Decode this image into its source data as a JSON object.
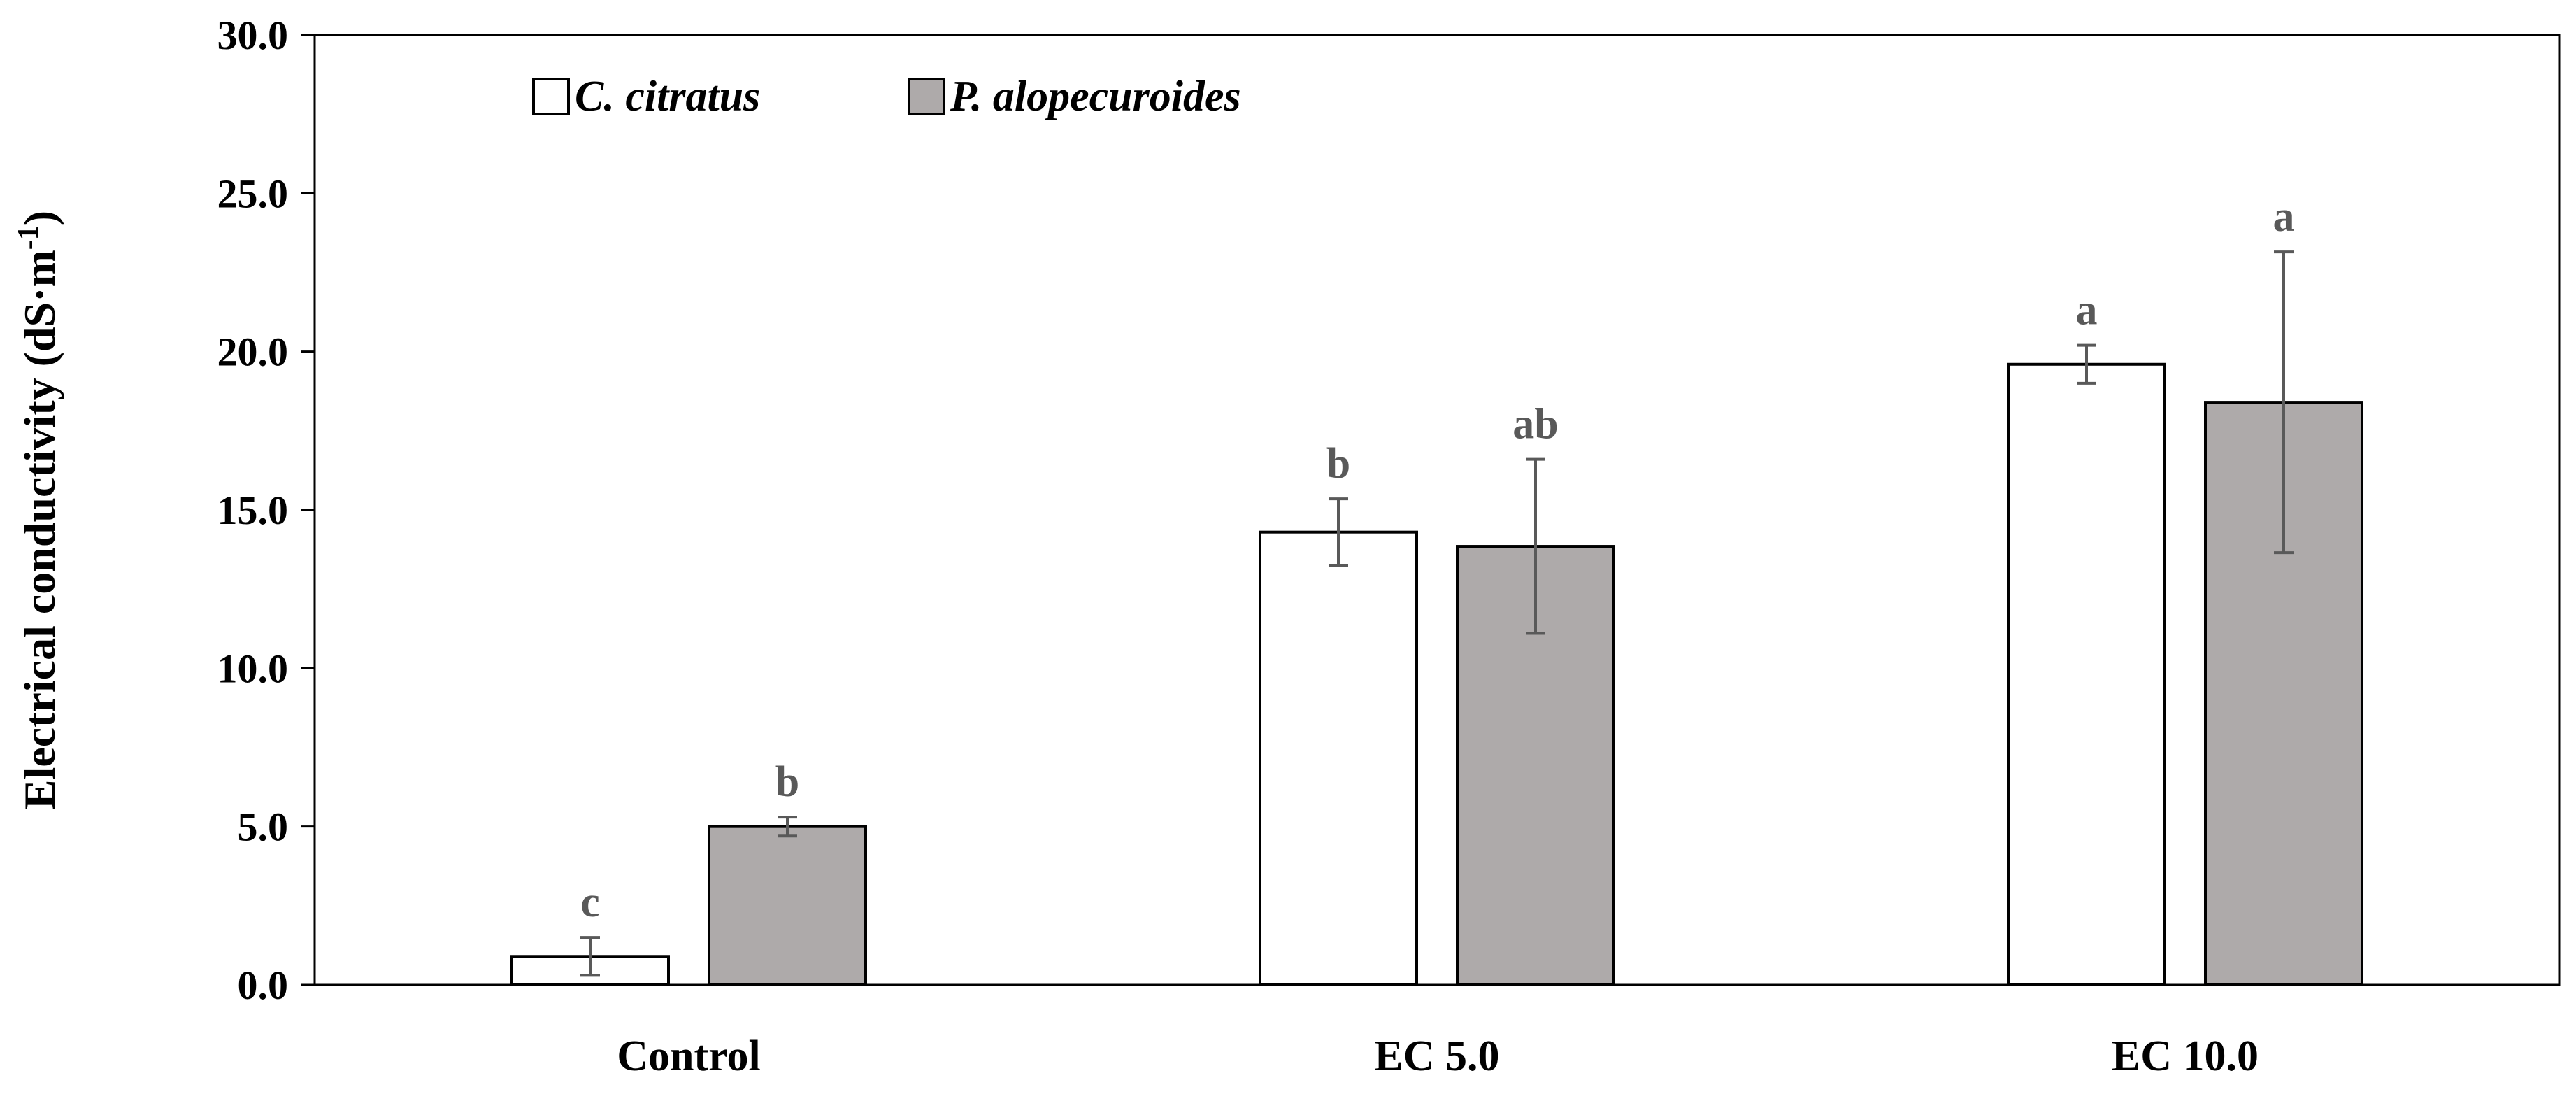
{
  "chart_data": {
    "type": "bar",
    "categories": [
      "Control",
      "EC 5.0",
      "EC 10.0"
    ],
    "series": [
      {
        "name": "C. citratus",
        "color": "#ffffff",
        "values": [
          0.9,
          14.3,
          19.6
        ],
        "errors": [
          0.6,
          1.05,
          0.6
        ],
        "letters": [
          "c",
          "b",
          "a"
        ]
      },
      {
        "name": "P. alopecuroides",
        "color": "#aeaaaa",
        "values": [
          5.0,
          13.85,
          18.4
        ],
        "errors": [
          0.3,
          2.75,
          4.75
        ],
        "letters": [
          "b",
          "ab",
          "a"
        ]
      }
    ],
    "ylabel_main": "Electrical conductivity (dS·m",
    "ylabel_sup": "-1",
    "ylabel_close": ")",
    "ylim": [
      0,
      30
    ],
    "yticks": [
      "0.0",
      "5.0",
      "10.0",
      "15.0",
      "20.0",
      "25.0",
      "30.0"
    ],
    "legend_position": "top-left",
    "error_bar_color": "#595959"
  }
}
